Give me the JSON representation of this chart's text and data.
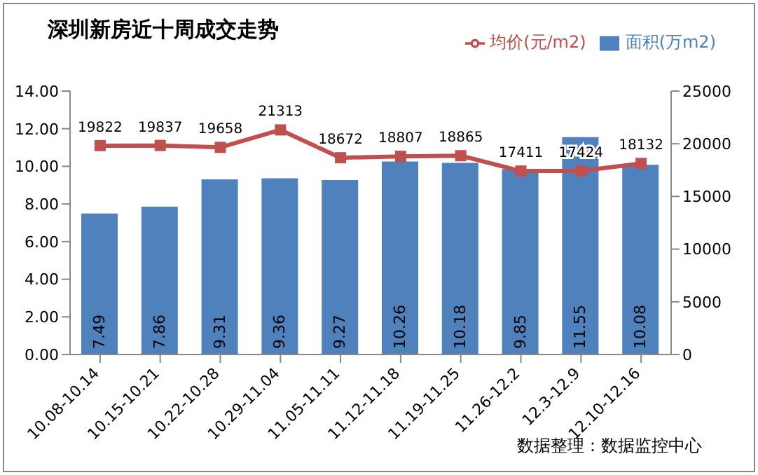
{
  "chart_data": {
    "type": "bar",
    "title": "深圳新房近十周成交走势",
    "categories": [
      "10.08-10.14",
      "10.15-10.21",
      "10.22-10.28",
      "10.29-11.04",
      "11.05-11.11",
      "11.12-11.18",
      "11.19-11.25",
      "11.26-12.2",
      "12.3-12.9",
      "12.10-12.16"
    ],
    "series": [
      {
        "name": "面积(万m2)",
        "color": "#4f81bd",
        "values": [
          7.49,
          7.86,
          9.31,
          9.36,
          9.27,
          10.26,
          10.18,
          9.85,
          11.55,
          10.08
        ]
      },
      {
        "name": "均价(元/m2)",
        "type": "line",
        "axis": "y2",
        "color": "#c0504d",
        "marker": "square",
        "values": [
          19822,
          19837,
          19658,
          21313,
          18672,
          18807,
          18865,
          17411,
          17424,
          18132
        ]
      }
    ],
    "ylim": [
      0,
      14
    ],
    "yticks": [
      {
        "value": 0,
        "label": "0.00"
      },
      {
        "value": 2,
        "label": "2.00"
      },
      {
        "value": 4,
        "label": "4.00"
      },
      {
        "value": 6,
        "label": "6.00"
      },
      {
        "value": 8,
        "label": "8.00"
      },
      {
        "value": 10,
        "label": "10.00"
      },
      {
        "value": 12,
        "label": "12.00"
      },
      {
        "value": 14,
        "label": "14.00"
      }
    ],
    "y2lim": [
      0,
      25000
    ],
    "y2ticks": [
      0,
      5000,
      10000,
      15000,
      20000,
      25000
    ],
    "data_labels": true,
    "legend": "top right",
    "grid": false,
    "annotations": [
      "数据整理：数据监控中心"
    ]
  }
}
